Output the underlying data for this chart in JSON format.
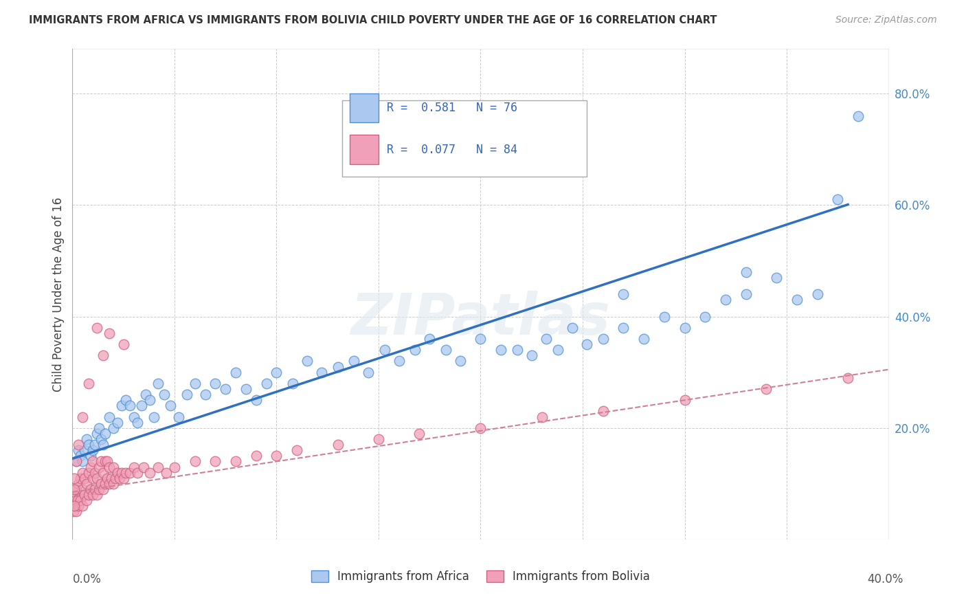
{
  "title": "IMMIGRANTS FROM AFRICA VS IMMIGRANTS FROM BOLIVIA CHILD POVERTY UNDER THE AGE OF 16 CORRELATION CHART",
  "source": "Source: ZipAtlas.com",
  "ylabel": "Child Poverty Under the Age of 16",
  "xlim": [
    0.0,
    0.4
  ],
  "ylim": [
    0.0,
    0.88
  ],
  "yticks": [
    0.2,
    0.4,
    0.6,
    0.8
  ],
  "ytick_labels": [
    "20.0%",
    "40.0%",
    "60.0%",
    "80.0%"
  ],
  "color_africa": "#aac8f0",
  "color_bolivia": "#f0a0b8",
  "edge_africa": "#5090d0",
  "edge_bolivia": "#d06080",
  "line_africa_color": "#3070c0",
  "line_bolivia_color": "#d08090",
  "watermark": "ZIPatlas",
  "legend_line1": "R =  0.581   N = 76",
  "legend_line2": "R =  0.077   N = 84",
  "africa_intercept": 0.145,
  "africa_slope": 1.2,
  "bolivia_intercept": 0.085,
  "bolivia_slope": 0.55,
  "africa_x": [
    0.002,
    0.003,
    0.004,
    0.005,
    0.006,
    0.007,
    0.008,
    0.009,
    0.01,
    0.011,
    0.012,
    0.013,
    0.014,
    0.015,
    0.016,
    0.018,
    0.02,
    0.022,
    0.024,
    0.026,
    0.028,
    0.03,
    0.032,
    0.034,
    0.036,
    0.038,
    0.04,
    0.042,
    0.045,
    0.048,
    0.052,
    0.056,
    0.06,
    0.065,
    0.07,
    0.075,
    0.08,
    0.085,
    0.09,
    0.095,
    0.1,
    0.108,
    0.115,
    0.122,
    0.13,
    0.138,
    0.145,
    0.153,
    0.16,
    0.168,
    0.175,
    0.183,
    0.19,
    0.2,
    0.21,
    0.218,
    0.225,
    0.232,
    0.238,
    0.245,
    0.252,
    0.26,
    0.27,
    0.28,
    0.29,
    0.3,
    0.31,
    0.32,
    0.33,
    0.345,
    0.355,
    0.365,
    0.375,
    0.385,
    0.27,
    0.33
  ],
  "africa_y": [
    0.14,
    0.16,
    0.15,
    0.14,
    0.16,
    0.18,
    0.17,
    0.15,
    0.16,
    0.17,
    0.19,
    0.2,
    0.18,
    0.17,
    0.19,
    0.22,
    0.2,
    0.21,
    0.24,
    0.25,
    0.24,
    0.22,
    0.21,
    0.24,
    0.26,
    0.25,
    0.22,
    0.28,
    0.26,
    0.24,
    0.22,
    0.26,
    0.28,
    0.26,
    0.28,
    0.27,
    0.3,
    0.27,
    0.25,
    0.28,
    0.3,
    0.28,
    0.32,
    0.3,
    0.31,
    0.32,
    0.3,
    0.34,
    0.32,
    0.34,
    0.36,
    0.34,
    0.32,
    0.36,
    0.34,
    0.34,
    0.33,
    0.36,
    0.34,
    0.38,
    0.35,
    0.36,
    0.38,
    0.36,
    0.4,
    0.38,
    0.4,
    0.43,
    0.44,
    0.47,
    0.43,
    0.44,
    0.61,
    0.76,
    0.44,
    0.48
  ],
  "bolivia_x": [
    0.0005,
    0.001,
    0.001,
    0.0015,
    0.002,
    0.002,
    0.0025,
    0.003,
    0.003,
    0.004,
    0.004,
    0.005,
    0.005,
    0.005,
    0.006,
    0.006,
    0.007,
    0.007,
    0.008,
    0.008,
    0.009,
    0.009,
    0.01,
    0.01,
    0.01,
    0.011,
    0.011,
    0.012,
    0.012,
    0.013,
    0.013,
    0.014,
    0.014,
    0.015,
    0.015,
    0.016,
    0.016,
    0.017,
    0.017,
    0.018,
    0.018,
    0.019,
    0.02,
    0.02,
    0.021,
    0.022,
    0.023,
    0.024,
    0.025,
    0.026,
    0.028,
    0.03,
    0.032,
    0.035,
    0.038,
    0.042,
    0.046,
    0.05,
    0.06,
    0.07,
    0.08,
    0.09,
    0.1,
    0.11,
    0.13,
    0.15,
    0.17,
    0.2,
    0.23,
    0.26,
    0.3,
    0.34,
    0.38,
    0.015,
    0.025,
    0.018,
    0.012,
    0.008,
    0.005,
    0.003,
    0.002,
    0.001,
    0.001,
    0.001
  ],
  "bolivia_y": [
    0.05,
    0.06,
    0.08,
    0.07,
    0.05,
    0.09,
    0.07,
    0.06,
    0.1,
    0.07,
    0.11,
    0.06,
    0.09,
    0.12,
    0.08,
    0.11,
    0.07,
    0.1,
    0.08,
    0.12,
    0.09,
    0.13,
    0.08,
    0.11,
    0.14,
    0.09,
    0.12,
    0.08,
    0.11,
    0.09,
    0.13,
    0.1,
    0.14,
    0.09,
    0.12,
    0.1,
    0.14,
    0.11,
    0.14,
    0.1,
    0.13,
    0.11,
    0.1,
    0.13,
    0.11,
    0.12,
    0.11,
    0.12,
    0.11,
    0.12,
    0.12,
    0.13,
    0.12,
    0.13,
    0.12,
    0.13,
    0.12,
    0.13,
    0.14,
    0.14,
    0.14,
    0.15,
    0.15,
    0.16,
    0.17,
    0.18,
    0.19,
    0.2,
    0.22,
    0.23,
    0.25,
    0.27,
    0.29,
    0.33,
    0.35,
    0.37,
    0.38,
    0.28,
    0.22,
    0.17,
    0.14,
    0.11,
    0.09,
    0.06
  ]
}
